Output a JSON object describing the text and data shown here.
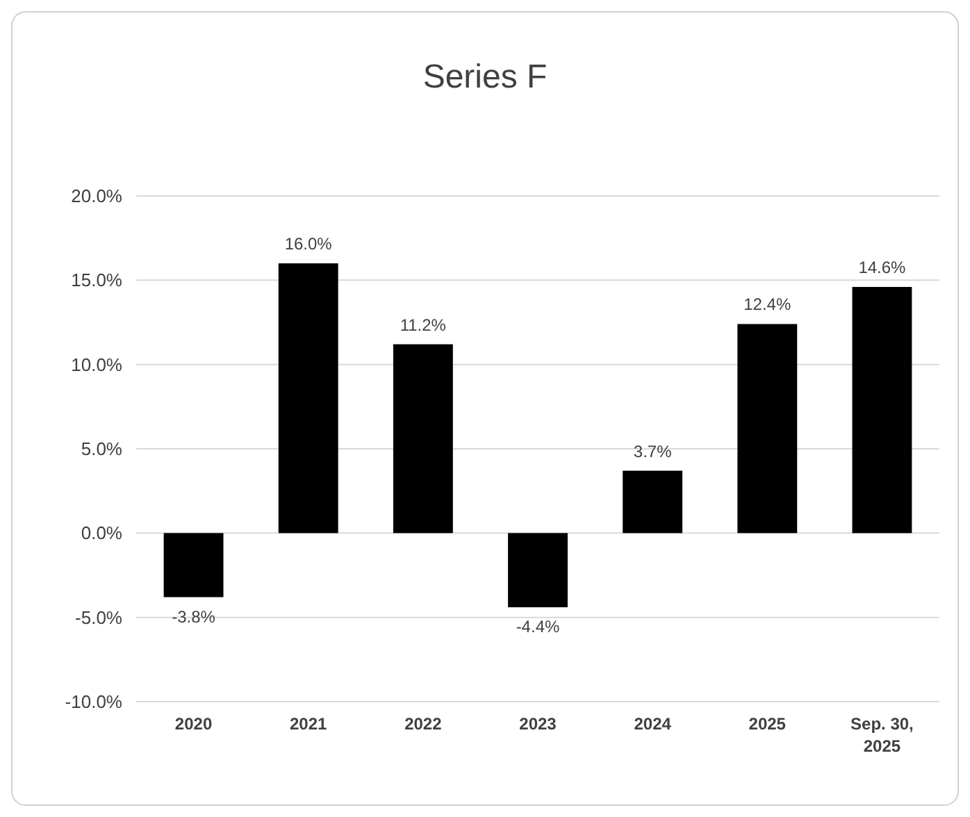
{
  "chart_data": {
    "type": "bar",
    "title": "Series F",
    "categories": [
      "2020",
      "2021",
      "2022",
      "2023",
      "2024",
      "2025",
      "Sep. 30, 2025"
    ],
    "values": [
      -3.8,
      16.0,
      11.2,
      -4.4,
      3.7,
      12.4,
      14.6
    ],
    "value_labels": [
      "-3.8%",
      "16.0%",
      "11.2%",
      "-4.4%",
      "3.7%",
      "12.4%",
      "14.6%"
    ],
    "color": "#000000",
    "ylim": [
      -10,
      20
    ],
    "yticks": [
      {
        "value": -10,
        "label": "-10.0%"
      },
      {
        "value": -5,
        "label": "-5.0%"
      },
      {
        "value": 0,
        "label": "0.0%"
      },
      {
        "value": 5,
        "label": "5.0%"
      },
      {
        "value": 10,
        "label": "10.0%"
      },
      {
        "value": 15,
        "label": "15.0%"
      },
      {
        "value": 20,
        "label": "20.0%"
      }
    ],
    "grid": "y"
  }
}
